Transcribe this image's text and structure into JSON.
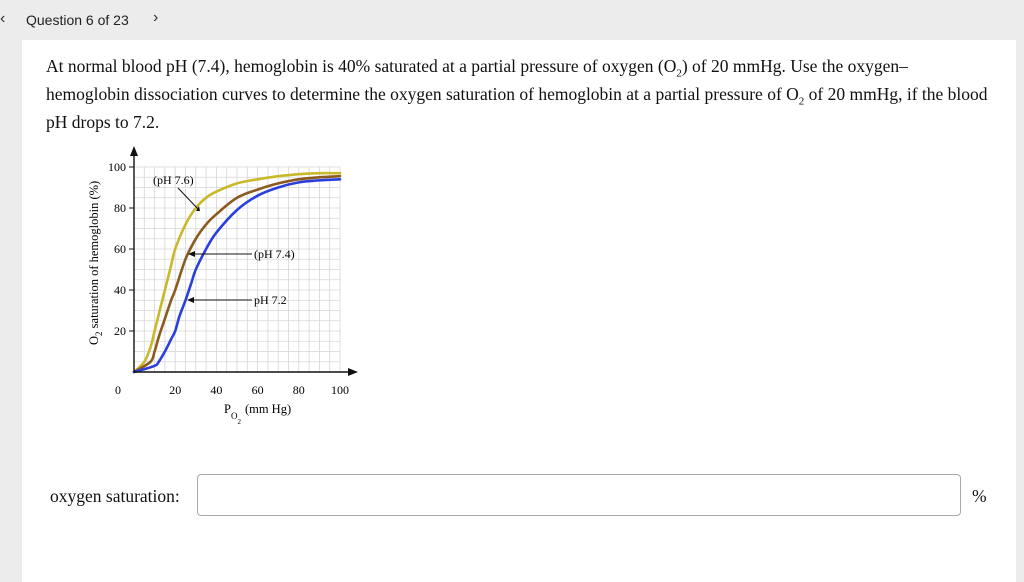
{
  "header": {
    "question_counter": "Question 6 of 23",
    "prev_icon": "chevron-left-icon",
    "next_icon": "chevron-right-icon"
  },
  "question": {
    "parts": [
      "At normal blood pH (7.4), hemoglobin is 40% saturated at a partial pressure of oxygen (O",
      "2",
      ") of 20 mmHg. Use the oxygen–hemoglobin dissociation curves to determine the oxygen saturation of hemoglobin at a partial pressure of O",
      "2",
      " of 20 mmHg, if the blood pH drops to 7.2."
    ]
  },
  "chart_data": {
    "type": "line",
    "xlabel": "P",
    "xlabel_sub_o": "O",
    "xlabel_sub_2": "2",
    "xlabel_units": "(mm Hg)",
    "ylabel_o": "O",
    "ylabel_2": "2",
    "ylabel_rest": " saturation of hemoglobin (%)",
    "xlim": [
      0,
      100
    ],
    "ylim": [
      0,
      100
    ],
    "x_ticks": [
      "0",
      "20",
      "40",
      "60",
      "80",
      "100"
    ],
    "y_ticks": [
      "20",
      "40",
      "60",
      "80",
      "100"
    ],
    "grid": true,
    "series": [
      {
        "name": "(pH 7.6)",
        "color": "#c8b82a",
        "x": [
          0,
          5,
          8,
          10,
          12,
          15,
          18,
          20,
          25,
          30,
          35,
          40,
          50,
          60,
          70,
          80,
          90,
          100
        ],
        "y": [
          0,
          5,
          12,
          20,
          28,
          40,
          52,
          60,
          72,
          80,
          85,
          88,
          92,
          94,
          95.5,
          96.5,
          97,
          97
        ]
      },
      {
        "name": "(pH 7.4)",
        "color": "#8a5a1e",
        "x": [
          0,
          8,
          10,
          12,
          15,
          18,
          20,
          25,
          30,
          35,
          40,
          50,
          60,
          70,
          80,
          90,
          100
        ],
        "y": [
          0,
          5,
          10,
          17,
          26,
          35,
          40,
          55,
          65,
          72,
          77,
          85,
          89,
          92,
          94,
          95,
          95.5
        ]
      },
      {
        "name": "pH 7.2",
        "color": "#2a3fdc",
        "x": [
          0,
          10,
          12,
          15,
          18,
          20,
          22,
          25,
          28,
          30,
          35,
          40,
          50,
          60,
          70,
          80,
          90,
          100
        ],
        "y": [
          0,
          3,
          5,
          10,
          16,
          20,
          27,
          35,
          44,
          50,
          60,
          68,
          79,
          86,
          90,
          92.5,
          93.5,
          94
        ]
      }
    ],
    "annotations": [
      {
        "text": "(pH 7.6)",
        "target_series": 0
      },
      {
        "text": "(pH 7.4)",
        "target_series": 1
      },
      {
        "text": "pH 7.2",
        "target_series": 2
      }
    ]
  },
  "answer": {
    "label": "oxygen saturation:",
    "value": "",
    "unit": "%"
  }
}
